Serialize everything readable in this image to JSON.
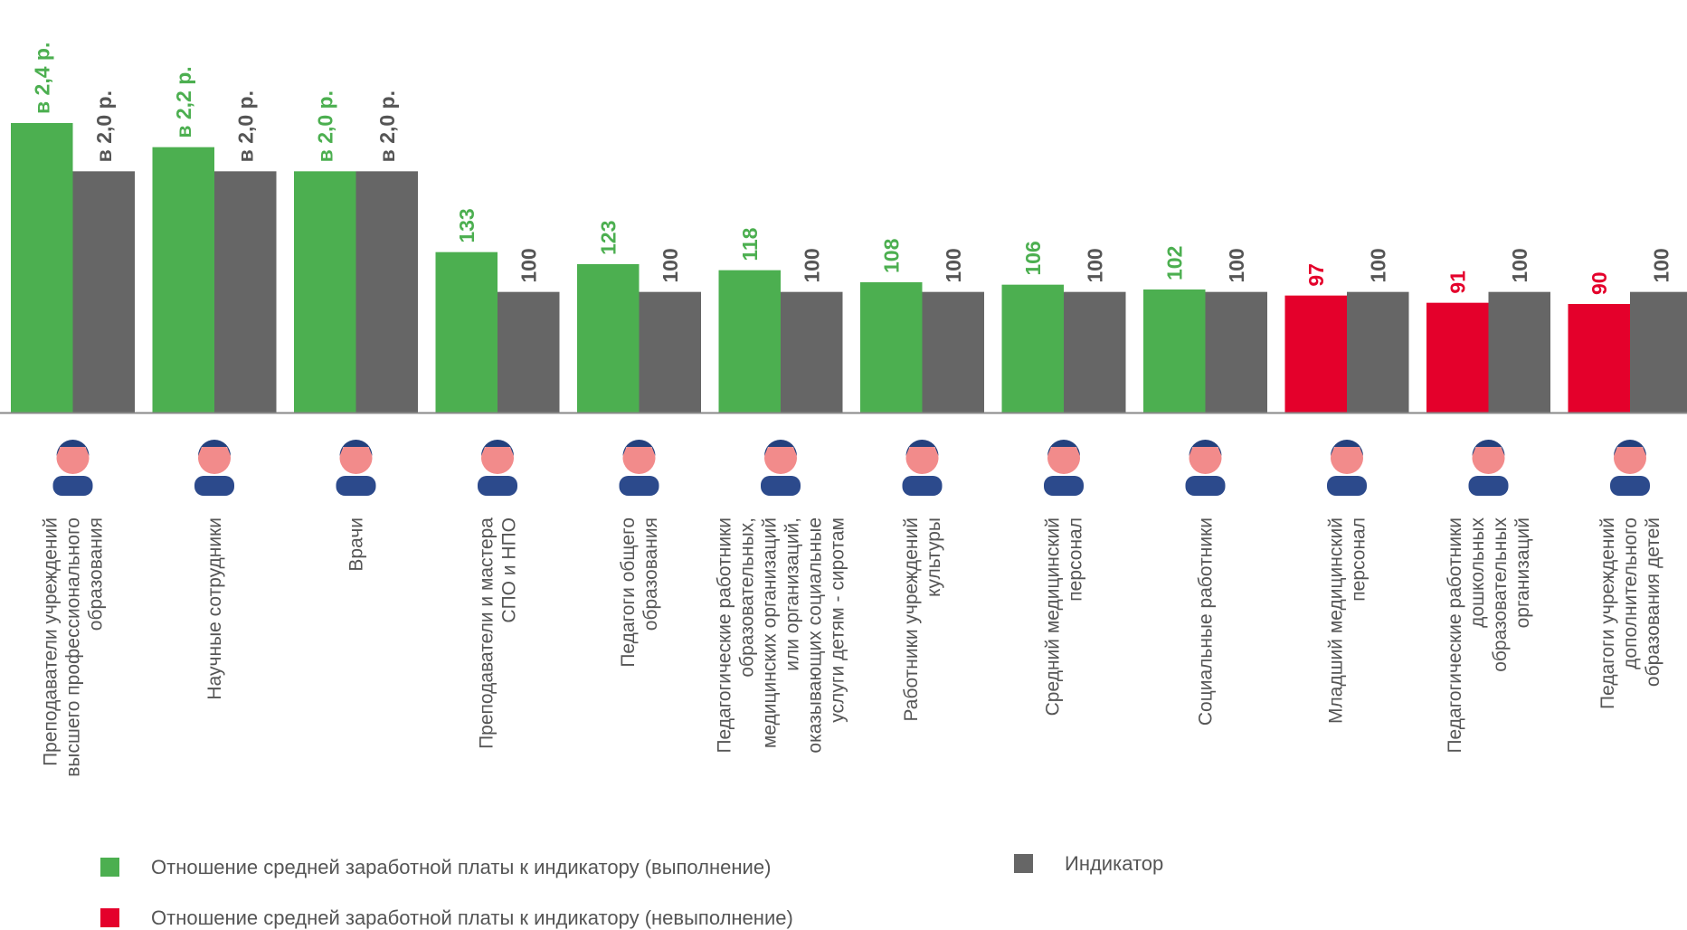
{
  "chart_data": {
    "type": "bar",
    "categories": [
      "Преподаватели учреждений\nвысшего профессионального\nобразования",
      "Научные сотрудники",
      "Врачи",
      "Преподаватели и мастера\nСПО и НПО",
      "Педагоги общего\nобразования",
      "Педагогические работники\nобразовательных,\nмедицинских организаций\nили организаций,\nоказывающих социальные\nуслуги детям - сиротам",
      "Работники учреждений\nкультуры",
      "Средний медицинский\nперсонал",
      "Социальные работники",
      "Младший медицинский\nперсонал",
      "Педагогические работники\nдошкольных\nобразовательных\nорганизаций",
      "Педагоги учреждений\nдополнительного\nобразования детей"
    ],
    "series": [
      {
        "name": "Отношение средней заработной платы к индикатору (выполнение)",
        "color": "#4caf50",
        "values": [
          240,
          220,
          200,
          133,
          123,
          118,
          108,
          106,
          102,
          null,
          null,
          null
        ],
        "value_labels": [
          "в 2,4 р.",
          "в 2,2 р.",
          "в 2,0 р.",
          "133",
          "123",
          "118",
          "108",
          "106",
          "102",
          null,
          null,
          null
        ]
      },
      {
        "name": "Отношение средней заработной платы к индикатору (невыполнение)",
        "color": "#e4002b",
        "values": [
          null,
          null,
          null,
          null,
          null,
          null,
          null,
          null,
          null,
          97,
          91,
          90
        ],
        "value_labels": [
          null,
          null,
          null,
          null,
          null,
          null,
          null,
          null,
          null,
          "97",
          "91",
          "90"
        ]
      },
      {
        "name": "Индикатор",
        "color": "#666666",
        "values": [
          200,
          200,
          200,
          100,
          100,
          100,
          100,
          100,
          100,
          100,
          100,
          100
        ],
        "value_labels": [
          "в 2,0 р.",
          "в 2,0 р.",
          "в 2,0 р.",
          "100",
          "100",
          "100",
          "100",
          "100",
          "100",
          "100",
          "100",
          "100"
        ]
      }
    ]
  }
}
